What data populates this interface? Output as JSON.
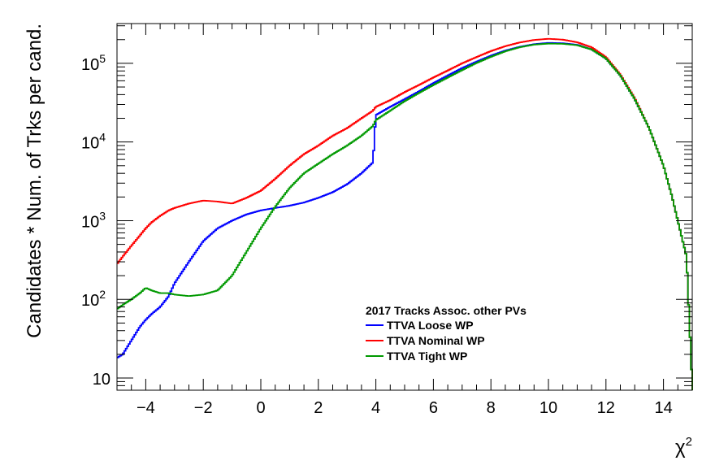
{
  "chart_data": {
    "type": "line",
    "title": "",
    "xlabel": "χ²",
    "ylabel": "Candidates * Num. of Trks per cand.",
    "xlim": [
      -5,
      15
    ],
    "ylim": [
      7,
      320000
    ],
    "yscale": "log",
    "grid": false,
    "x_ticks": [
      {
        "value": -4,
        "label": "−4"
      },
      {
        "value": -2,
        "label": "−2"
      },
      {
        "value": 0,
        "label": "0"
      },
      {
        "value": 2,
        "label": "2"
      },
      {
        "value": 4,
        "label": "4"
      },
      {
        "value": 6,
        "label": "6"
      },
      {
        "value": 8,
        "label": "8"
      },
      {
        "value": 10,
        "label": "10"
      },
      {
        "value": 12,
        "label": "12"
      },
      {
        "value": 14,
        "label": "14"
      }
    ],
    "y_ticks": [
      {
        "value": 10,
        "base": "10",
        "exp": ""
      },
      {
        "value": 100,
        "base": "10",
        "exp": "2"
      },
      {
        "value": 1000,
        "base": "10",
        "exp": "3"
      },
      {
        "value": 10000,
        "base": "10",
        "exp": "4"
      },
      {
        "value": 100000,
        "base": "10",
        "exp": "5"
      }
    ],
    "legend": {
      "placement": "lower-center",
      "title": "2017 Tracks Assoc. other PVs"
    },
    "series": [
      {
        "name": "TTVA Loose WP",
        "color": "#0000ff",
        "x": [
          -5,
          -4.8,
          -4.5,
          -4.2,
          -4,
          -3.8,
          -3.5,
          -3.2,
          -3,
          -2.5,
          -2,
          -1.5,
          -1,
          -0.5,
          0,
          0.5,
          1,
          1.5,
          2,
          2.5,
          3,
          3.5,
          3.9,
          4,
          4.5,
          5,
          5.5,
          6,
          6.5,
          7,
          7.5,
          8,
          8.5,
          9,
          9.5,
          10,
          10.5,
          11,
          11.5,
          12,
          12.5,
          13,
          13.5,
          14,
          14.3,
          14.6,
          14.8,
          15
        ],
        "y": [
          18,
          20,
          30,
          45,
          55,
          65,
          80,
          110,
          160,
          300,
          550,
          800,
          1000,
          1200,
          1350,
          1450,
          1550,
          1700,
          1950,
          2300,
          2900,
          4000,
          5500,
          22000,
          28000,
          35000,
          44000,
          56000,
          70000,
          87000,
          105000,
          125000,
          145000,
          162000,
          175000,
          182000,
          180000,
          172000,
          150000,
          115000,
          70000,
          35000,
          15000,
          5000,
          2000,
          700,
          350,
          8
        ]
      },
      {
        "name": "TTVA Nominal WP",
        "color": "#ff0000",
        "x": [
          -5,
          -4.8,
          -4.5,
          -4.2,
          -4,
          -3.8,
          -3.5,
          -3.2,
          -3,
          -2.5,
          -2,
          -1.5,
          -1,
          -0.5,
          0,
          0.5,
          1,
          1.5,
          2,
          2.5,
          3,
          3.5,
          3.9,
          4,
          4.5,
          5,
          5.5,
          6,
          6.5,
          7,
          7.5,
          8,
          8.5,
          9,
          9.5,
          10,
          10.5,
          11,
          11.5,
          12,
          12.5,
          13,
          13.5,
          14,
          14.3,
          14.6,
          14.8,
          15
        ],
        "y": [
          280,
          350,
          480,
          650,
          800,
          950,
          1150,
          1350,
          1450,
          1650,
          1800,
          1750,
          1650,
          1950,
          2400,
          3400,
          5000,
          7000,
          9000,
          12000,
          15000,
          20000,
          25000,
          28000,
          34000,
          43000,
          53000,
          66000,
          81000,
          100000,
          120000,
          143000,
          165000,
          184000,
          198000,
          205000,
          200000,
          185000,
          160000,
          120000,
          72000,
          36000,
          15000,
          5000,
          2000,
          700,
          350,
          8
        ]
      },
      {
        "name": "TTVA Tight WP",
        "color": "#009900",
        "x": [
          -5,
          -4.8,
          -4.5,
          -4.2,
          -4,
          -3.8,
          -3.5,
          -3.2,
          -3,
          -2.5,
          -2,
          -1.5,
          -1,
          -0.5,
          0,
          0.5,
          1,
          1.5,
          2,
          2.5,
          3,
          3.5,
          3.9,
          4,
          4.5,
          5,
          5.5,
          6,
          6.5,
          7,
          7.5,
          8,
          8.5,
          9,
          9.5,
          10,
          10.5,
          11,
          11.5,
          12,
          12.5,
          13,
          13.5,
          14,
          14.3,
          14.6,
          14.8,
          15
        ],
        "y": [
          75,
          85,
          100,
          120,
          140,
          130,
          120,
          120,
          115,
          110,
          115,
          130,
          200,
          400,
          800,
          1500,
          2600,
          4000,
          5300,
          7000,
          9000,
          12000,
          16000,
          19000,
          25000,
          33000,
          42000,
          53000,
          66000,
          82000,
          101000,
          121000,
          142000,
          160000,
          173000,
          178000,
          177000,
          170000,
          150000,
          115000,
          70000,
          35000,
          15000,
          5000,
          2000,
          700,
          350,
          8
        ]
      }
    ]
  }
}
